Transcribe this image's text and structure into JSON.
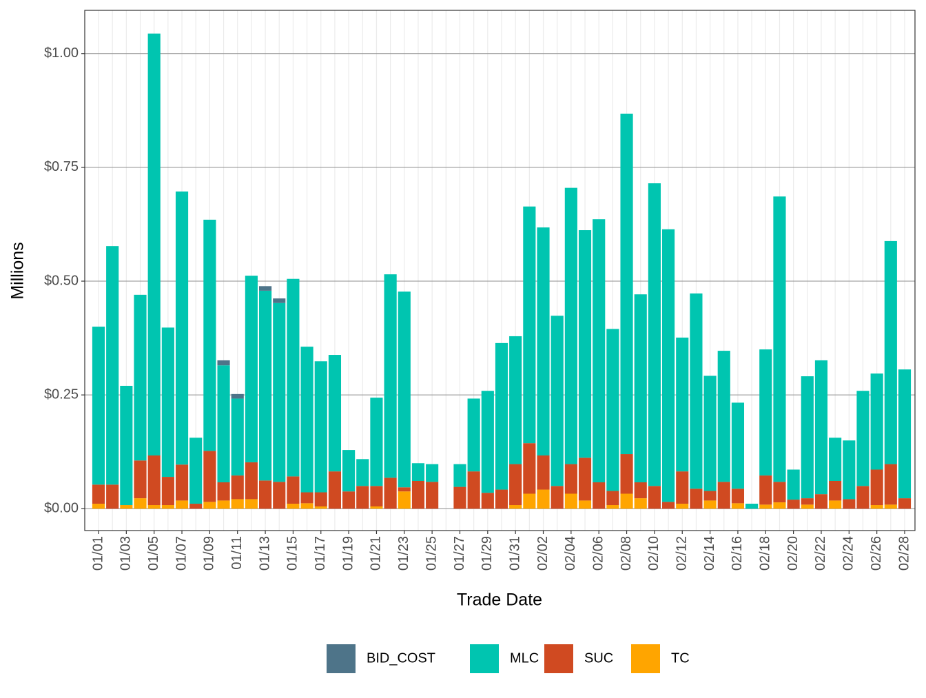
{
  "chart_data": {
    "type": "bar",
    "stacked": true,
    "x_label": "Trade Date",
    "y_label": "Millions",
    "categories": [
      "01/01",
      null,
      "01/03",
      null,
      "01/05",
      null,
      "01/07",
      null,
      "01/09",
      null,
      "01/11",
      null,
      "01/13",
      null,
      "01/15",
      null,
      "01/17",
      null,
      "01/19",
      null,
      "01/21",
      null,
      "01/23",
      null,
      "01/25",
      null,
      "01/27",
      null,
      "01/29",
      null,
      "01/31",
      null,
      "02/02",
      null,
      "02/04",
      null,
      "02/06",
      null,
      "02/08",
      null,
      "02/10",
      null,
      "02/12",
      null,
      "02/14",
      null,
      "02/16",
      null,
      "02/18",
      null,
      "02/20",
      null,
      "02/22",
      null,
      "02/24",
      null,
      "02/26",
      null,
      "02/28"
    ],
    "series": [
      {
        "name": "TC",
        "color": "#ffa500",
        "values": [
          0.011,
          0,
          0.008,
          0.023,
          0.008,
          0.008,
          0.018,
          0,
          0.015,
          0.018,
          0.021,
          0.021,
          0,
          0,
          0.011,
          0.012,
          0.005,
          0,
          0,
          0,
          0.005,
          0,
          0.038,
          0,
          0,
          0,
          0,
          0,
          0,
          0,
          0.008,
          0.033,
          0.042,
          0,
          0.033,
          0.018,
          0,
          0.008,
          0.033,
          0.023,
          0,
          0,
          0.011,
          0,
          0.018,
          0,
          0.012,
          0,
          0.009,
          0.014,
          0,
          0.009,
          0,
          0.018,
          0,
          0,
          0.008,
          0.009,
          0
        ]
      },
      {
        "name": "SUC",
        "color": "#d04a21",
        "values": [
          0.042,
          0.053,
          0,
          0.083,
          0.109,
          0.062,
          0.079,
          0.011,
          0.112,
          0.04,
          0.052,
          0.081,
          0.062,
          0.059,
          0.06,
          0.024,
          0.031,
          0.082,
          0.038,
          0.05,
          0.045,
          0.068,
          0.009,
          0.061,
          0.059,
          0,
          0.048,
          0.082,
          0.035,
          0.042,
          0.09,
          0.111,
          0.075,
          0.05,
          0.065,
          0.094,
          0.058,
          0.031,
          0.087,
          0.035,
          0.05,
          0.015,
          0.071,
          0.044,
          0.021,
          0.059,
          0.032,
          0,
          0.064,
          0.045,
          0.02,
          0.014,
          0.032,
          0.043,
          0.021,
          0.05,
          0.078,
          0.089,
          0.023
        ]
      },
      {
        "name": "MLC",
        "color": "#00c5b0",
        "values": [
          0.347,
          0.524,
          0.262,
          0.364,
          0.927,
          0.328,
          0.6,
          0.145,
          0.508,
          0.257,
          0.169,
          0.41,
          0.417,
          0.393,
          0.434,
          0.32,
          0.288,
          0.256,
          0.091,
          0.059,
          0.194,
          0.447,
          0.43,
          0.039,
          0.039,
          0,
          0.05,
          0.16,
          0.224,
          0.322,
          0.281,
          0.52,
          0.501,
          0.374,
          0.607,
          0.5,
          0.578,
          0.356,
          0.748,
          0.413,
          0.665,
          0.599,
          0.294,
          0.429,
          0.253,
          0.288,
          0.189,
          0.011,
          0.277,
          0.627,
          0.066,
          0.268,
          0.294,
          0.095,
          0.129,
          0.209,
          0.211,
          0.49,
          0.283
        ]
      },
      {
        "name": "BID_COST",
        "color": "#4e7489",
        "values": [
          0,
          0,
          0,
          0,
          0,
          0,
          0,
          0,
          0,
          0.011,
          0.01,
          0,
          0.01,
          0.01,
          0,
          0,
          0,
          0,
          0,
          0,
          0,
          0,
          0,
          0,
          0,
          0,
          0,
          0,
          0,
          0,
          0,
          0,
          0,
          0,
          0,
          0,
          0,
          0,
          0,
          0,
          0,
          0,
          0,
          0,
          0,
          0,
          0,
          0,
          0,
          0,
          0,
          0,
          0,
          0,
          0,
          0,
          0,
          0,
          0
        ]
      }
    ],
    "legend_order": [
      "BID_COST",
      "MLC",
      "SUC",
      "TC"
    ],
    "ylim": [
      -0.048,
      1.095
    ],
    "yticks": [
      {
        "value": 0,
        "label": "$0.00"
      },
      {
        "value": 0.25,
        "label": "$0.25"
      },
      {
        "value": 0.5,
        "label": "$0.50"
      },
      {
        "value": 0.75,
        "label": "$0.75"
      },
      {
        "value": 1,
        "label": "$1.00"
      }
    ],
    "grid": true,
    "legend_position": "bottom"
  }
}
